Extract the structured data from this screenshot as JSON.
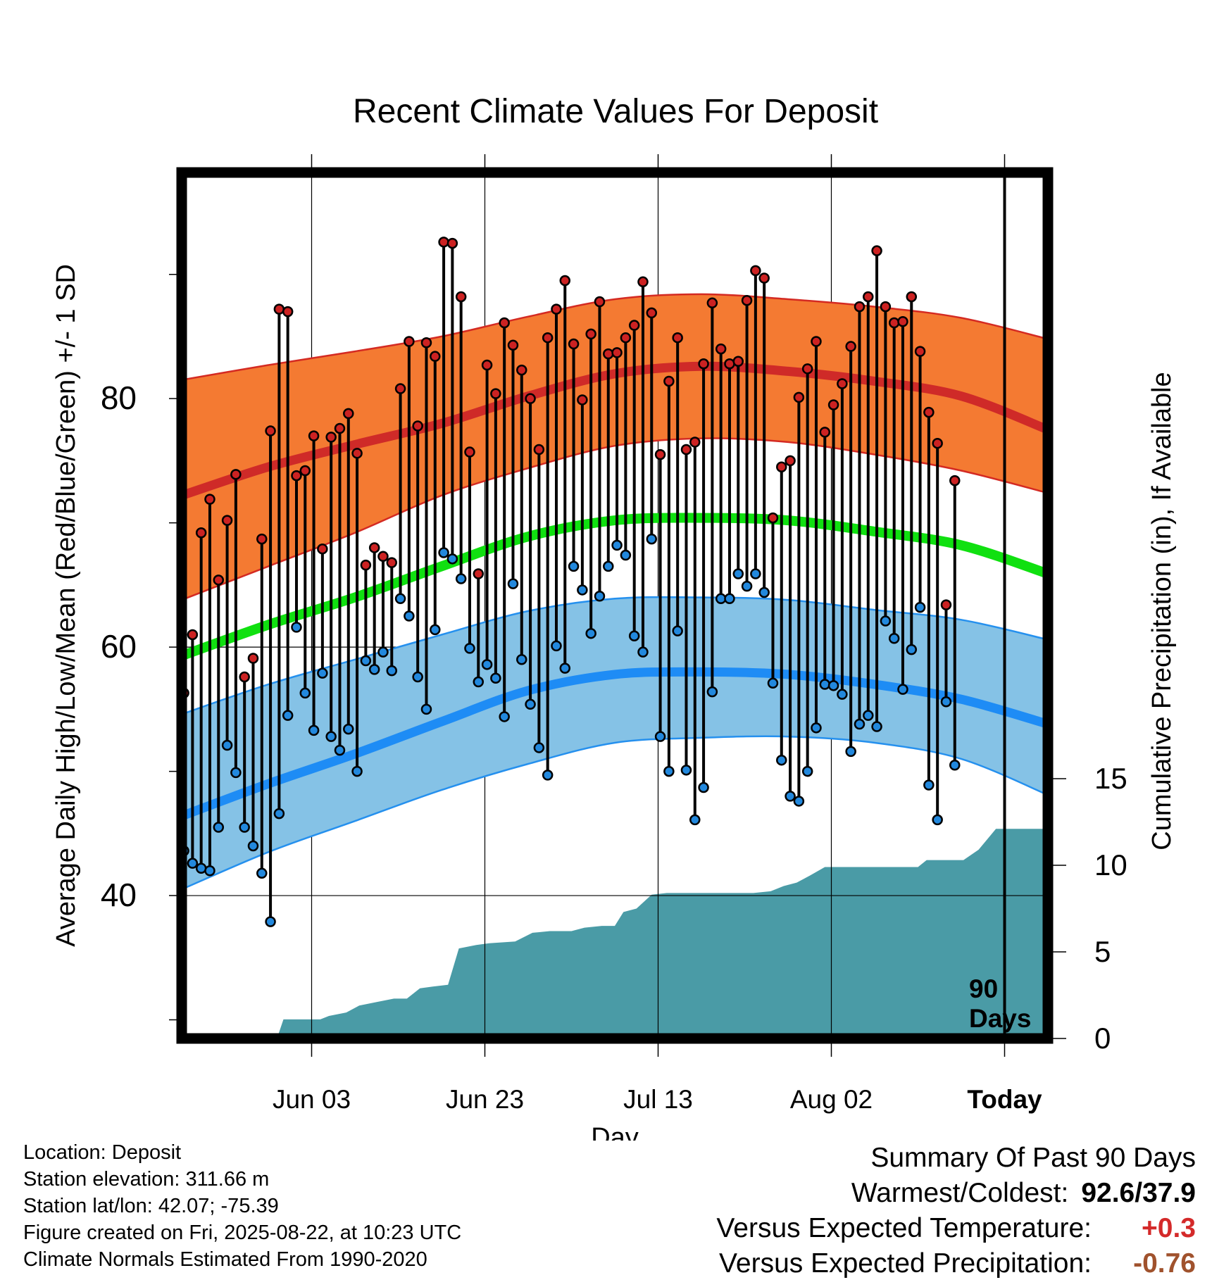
{
  "colors": {
    "high_band": "#f47a32",
    "high_edge": "#d42a22",
    "high_mean": "#cf2a28",
    "low_band": "#85c2e6",
    "low_edge": "#2590ee",
    "low_mean": "#1e8cf5",
    "mean_line": "#10e010",
    "precip_fill": "#4a9ba6",
    "high_dot": "#cc2222",
    "low_dot": "#2288dd",
    "warm_value": "#d42a2a",
    "precip_value": "#a0522d"
  },
  "footer": {
    "location": "Location: Deposit",
    "elevation": "Station elevation: 311.66 m",
    "latlon": "Station lat/lon: 42.07; -75.39",
    "created": "Figure created on Fri, 2025-08-22, at 10:23 UTC",
    "normals": "Climate Normals Estimated From 1990-2020"
  },
  "summary": {
    "title": "Summary Of Past 90 Days",
    "warm_cold_label": "Warmest/Coldest:",
    "warm_cold_value": "92.6/37.9",
    "temp_label": "Versus Expected Temperature:",
    "temp_value": "+0.3",
    "precip_label": "Versus Expected Precipitation:",
    "precip_value": "-0.76"
  },
  "chart_data": {
    "type": "line",
    "title": "Recent Climate Values For Deposit",
    "xlabel": "Day",
    "ylabel": "Average Daily High/Low/Mean (Red/Blue/Green) +/- 1 SD",
    "y2label": "Cumulative Precipitation (in), If Available",
    "xlim": [
      -11,
      9
    ],
    "ylim": [
      28.5,
      98.2
    ],
    "y2lim": [
      0,
      50
    ],
    "x_ticks": [
      {
        "x": -8,
        "label": "Jun 03"
      },
      {
        "x": -4,
        "label": "Jun 23"
      },
      {
        "x": 0,
        "label": "Jul 13"
      },
      {
        "x": 4,
        "label": "Aug 02"
      },
      {
        "x": 8,
        "label": "Today"
      }
    ],
    "x_units": "20 days per unit (Jul 13 = 0)",
    "y_ticks": [
      40,
      60,
      80
    ],
    "y_minor_ticks": [
      30,
      50,
      70,
      90
    ],
    "y2_ticks": [
      0,
      5,
      10,
      15
    ],
    "marker_today": {
      "x": 8,
      "label_line1": "90",
      "label_line2": "Days"
    },
    "normals": {
      "x": [
        -11,
        -9,
        -7,
        -5,
        -3,
        -1,
        1,
        3,
        5,
        7,
        9
      ],
      "high_mean": [
        72.2,
        74.5,
        76.3,
        78.0,
        80.2,
        82.0,
        82.6,
        82.2,
        81.4,
        80.2,
        77.5
      ],
      "high_upper": [
        81.5,
        82.7,
        83.8,
        85.0,
        86.6,
        88.0,
        88.4,
        88.0,
        87.4,
        86.5,
        84.8
      ],
      "high_lower": [
        63.8,
        66.5,
        69.2,
        72.2,
        74.4,
        76.2,
        76.8,
        76.5,
        75.5,
        74.2,
        72.4
      ],
      "mean": [
        59.3,
        61.8,
        64.0,
        66.5,
        68.9,
        70.2,
        70.4,
        70.2,
        69.3,
        68.2,
        65.9
      ],
      "low_mean": [
        46.4,
        49.0,
        51.4,
        54.0,
        56.5,
        57.8,
        58.0,
        57.8,
        57.0,
        55.8,
        53.8
      ],
      "low_upper": [
        54.6,
        57.0,
        59.0,
        61.0,
        62.9,
        63.9,
        64.0,
        63.8,
        63.0,
        62.2,
        60.6
      ],
      "low_lower": [
        40.5,
        43.5,
        46.0,
        48.5,
        50.6,
        52.3,
        52.7,
        52.8,
        52.3,
        51.0,
        48.1
      ]
    },
    "daily_high": [
      56.3,
      61.0,
      69.2,
      71.9,
      65.4,
      70.2,
      73.9,
      57.6,
      59.1,
      68.7,
      77.4,
      87.2,
      87.0,
      73.8,
      74.2,
      77.0,
      67.9,
      76.9,
      77.6,
      78.8,
      75.6,
      66.6,
      68.0,
      67.3,
      66.8,
      80.8,
      84.6,
      77.8,
      84.5,
      83.4,
      92.6,
      92.5,
      88.2,
      75.7,
      65.9,
      82.7,
      80.4,
      86.1,
      84.3,
      82.3,
      80.0,
      75.9,
      84.9,
      87.2,
      89.5,
      84.4,
      79.9,
      85.2,
      87.8,
      83.6,
      83.7,
      84.9,
      85.9,
      89.4,
      86.9,
      75.5,
      81.4,
      84.9,
      75.9,
      76.5,
      82.8,
      87.7,
      84.0,
      82.8,
      83.0,
      87.9,
      90.3,
      89.7,
      70.4,
      74.5,
      75.0,
      80.1,
      82.4,
      84.6,
      77.3,
      79.5,
      81.2,
      84.2,
      87.4,
      88.2,
      91.9,
      87.4,
      86.1,
      86.2,
      88.2,
      83.8,
      78.9,
      76.4,
      63.4,
      73.4
    ],
    "daily_low": [
      43.6,
      42.6,
      42.2,
      42.0,
      45.5,
      52.1,
      49.9,
      45.5,
      44.0,
      41.8,
      37.9,
      46.6,
      54.5,
      61.6,
      56.3,
      53.3,
      57.9,
      52.8,
      51.7,
      53.4,
      50.0,
      58.9,
      58.2,
      59.6,
      58.1,
      63.9,
      62.5,
      57.6,
      55.0,
      61.4,
      67.6,
      67.1,
      65.5,
      59.9,
      57.2,
      58.6,
      57.5,
      54.4,
      65.1,
      59.0,
      55.4,
      51.9,
      49.7,
      60.1,
      58.3,
      66.5,
      64.6,
      61.1,
      64.1,
      66.5,
      68.2,
      67.4,
      60.9,
      59.6,
      68.7,
      52.8,
      50.0,
      61.3,
      50.1,
      46.1,
      48.7,
      56.4,
      63.9,
      63.9,
      65.9,
      64.9,
      65.9,
      64.4,
      57.1,
      50.9,
      48.0,
      47.6,
      50.0,
      53.5,
      57.0,
      56.9,
      56.2,
      51.6,
      53.8,
      54.5,
      53.6,
      62.1,
      60.7,
      56.6,
      59.8,
      63.2,
      48.9,
      46.1,
      55.6,
      50.5
    ],
    "cumulative_precip": [
      {
        "x": -11.0,
        "y": 0.0
      },
      {
        "x": -8.8,
        "y": 0.0
      },
      {
        "x": -8.65,
        "y": 1.1
      },
      {
        "x": -8.3,
        "y": 1.1
      },
      {
        "x": -7.8,
        "y": 1.1
      },
      {
        "x": -7.6,
        "y": 1.3
      },
      {
        "x": -7.2,
        "y": 1.5
      },
      {
        "x": -6.9,
        "y": 1.9
      },
      {
        "x": -6.5,
        "y": 2.1
      },
      {
        "x": -6.1,
        "y": 2.3
      },
      {
        "x": -5.8,
        "y": 2.3
      },
      {
        "x": -5.5,
        "y": 2.9
      },
      {
        "x": -5.2,
        "y": 3.0
      },
      {
        "x": -4.85,
        "y": 3.1
      },
      {
        "x": -4.6,
        "y": 5.2
      },
      {
        "x": -4.2,
        "y": 5.4
      },
      {
        "x": -3.9,
        "y": 5.5
      },
      {
        "x": -3.3,
        "y": 5.6
      },
      {
        "x": -2.9,
        "y": 6.1
      },
      {
        "x": -2.5,
        "y": 6.2
      },
      {
        "x": -2.0,
        "y": 6.2
      },
      {
        "x": -1.7,
        "y": 6.4
      },
      {
        "x": -1.3,
        "y": 6.5
      },
      {
        "x": -1.0,
        "y": 6.5
      },
      {
        "x": -0.8,
        "y": 7.3
      },
      {
        "x": -0.5,
        "y": 7.5
      },
      {
        "x": -0.15,
        "y": 8.3
      },
      {
        "x": 0.2,
        "y": 8.4
      },
      {
        "x": 0.8,
        "y": 8.4
      },
      {
        "x": 1.5,
        "y": 8.4
      },
      {
        "x": 2.2,
        "y": 8.4
      },
      {
        "x": 2.6,
        "y": 8.5
      },
      {
        "x": 2.9,
        "y": 8.8
      },
      {
        "x": 3.2,
        "y": 9.0
      },
      {
        "x": 3.5,
        "y": 9.4
      },
      {
        "x": 3.85,
        "y": 9.9
      },
      {
        "x": 4.2,
        "y": 9.9
      },
      {
        "x": 4.6,
        "y": 9.9
      },
      {
        "x": 5.1,
        "y": 9.9
      },
      {
        "x": 5.7,
        "y": 9.9
      },
      {
        "x": 6.0,
        "y": 9.9
      },
      {
        "x": 6.2,
        "y": 10.3
      },
      {
        "x": 6.5,
        "y": 10.3
      },
      {
        "x": 7.05,
        "y": 10.3
      },
      {
        "x": 7.4,
        "y": 10.9
      },
      {
        "x": 7.8,
        "y": 12.1
      },
      {
        "x": 8.4,
        "y": 12.1
      },
      {
        "x": 9.0,
        "y": 12.1
      }
    ]
  }
}
